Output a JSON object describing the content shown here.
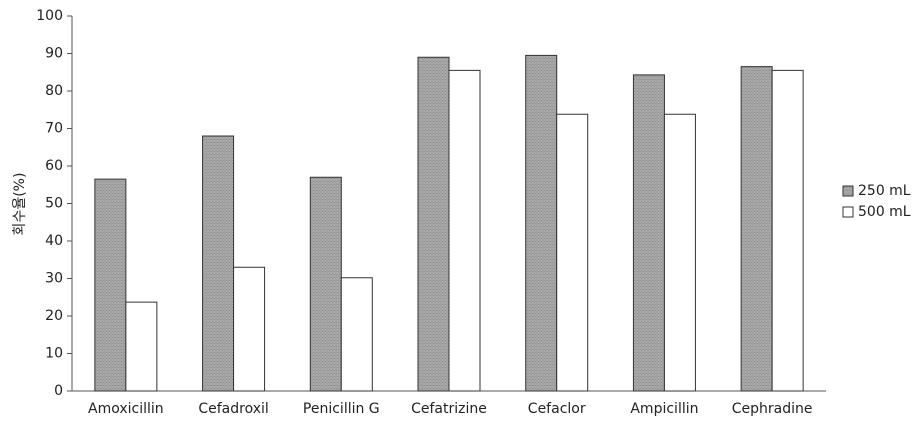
{
  "chart_data": {
    "type": "bar",
    "title": "",
    "xlabel": "",
    "ylabel": "회수율(%)",
    "ylim": [
      0,
      100
    ],
    "yticks": [
      0,
      10,
      20,
      30,
      40,
      50,
      60,
      70,
      80,
      90,
      100
    ],
    "grid": false,
    "legend_position": "right",
    "categories": [
      "Amoxicillin",
      "Cefadroxil",
      "Penicillin G",
      "Cefatrizine",
      "Cefaclor",
      "Ampicillin",
      "Cephradine"
    ],
    "series": [
      {
        "name": "250 mL",
        "values": [
          56.5,
          68,
          57,
          89,
          89.5,
          84.3,
          86.5
        ],
        "color": "#a6a6a6"
      },
      {
        "name": "500 mL",
        "values": [
          23.7,
          33,
          30.2,
          85.5,
          73.8,
          73.8,
          85.5
        ],
        "color": "#ffffff"
      }
    ],
    "axis_color": "#555555",
    "bar_stroke": "#333333"
  }
}
